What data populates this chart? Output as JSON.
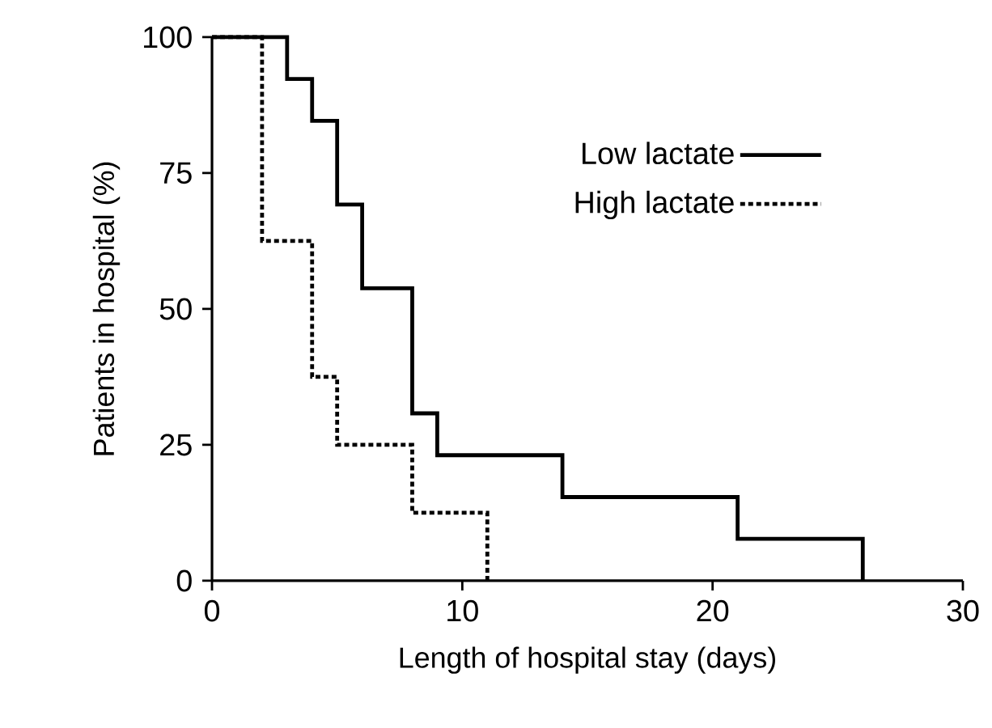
{
  "chart_data": {
    "type": "step",
    "xlabel": "Length of hospital stay (days)",
    "ylabel": "Patients  in hospital (%)",
    "xlim": [
      0,
      30
    ],
    "ylim": [
      0,
      100
    ],
    "xticks": [
      0,
      10,
      20,
      30
    ],
    "yticks": [
      0,
      25,
      50,
      75,
      100
    ],
    "grid": false,
    "legend": "right",
    "series": [
      {
        "name": "Low lactate",
        "color": "#000000",
        "line_style": "solid",
        "x": [
          0,
          3,
          4,
          5,
          6,
          8,
          9,
          14,
          21,
          26
        ],
        "values": [
          100,
          92.3,
          84.6,
          69.2,
          53.8,
          30.8,
          23.1,
          15.4,
          7.7,
          0
        ]
      },
      {
        "name": "High lactate",
        "color": "#000000",
        "line_style": "dashed",
        "x": [
          0,
          2,
          4,
          5,
          8,
          11
        ],
        "values": [
          100,
          62.5,
          37.5,
          25,
          12.5,
          0
        ]
      }
    ]
  }
}
